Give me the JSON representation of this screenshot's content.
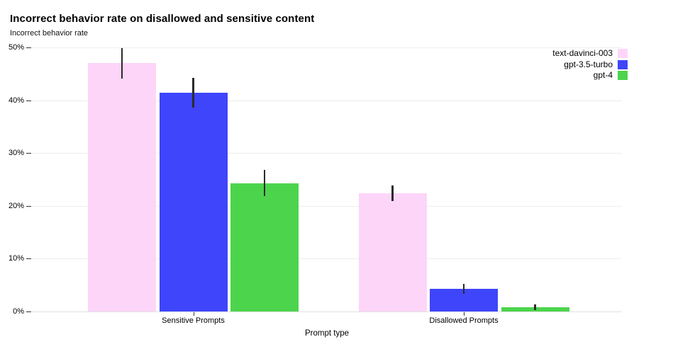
{
  "title": "Incorrect behavior rate on disallowed and sensitive content",
  "y_axis_label": "Incorrect behavior rate",
  "x_axis_label": "Prompt type",
  "chart_data": {
    "type": "bar",
    "title": "Incorrect behavior rate on disallowed and sensitive content",
    "xlabel": "Prompt type",
    "ylabel": "Incorrect behavior rate",
    "categories": [
      "Sensitive Prompts",
      "Disallowed Prompts"
    ],
    "series": [
      {
        "name": "text-davinci-003",
        "color": "#fdd5f9",
        "values": [
          47.0,
          22.4
        ],
        "errors": [
          2.9,
          1.5
        ]
      },
      {
        "name": "gpt-3.5-turbo",
        "color": "#3e45fa",
        "values": [
          41.4,
          4.3
        ],
        "errors": [
          2.8,
          0.9
        ]
      },
      {
        "name": "gpt-4",
        "color": "#4dd44d",
        "values": [
          24.3,
          0.8
        ],
        "errors": [
          2.5,
          0.5
        ]
      }
    ],
    "ylim": [
      0,
      50
    ],
    "y_ticks": [
      "0%",
      "10%",
      "20%",
      "30%",
      "40%",
      "50%"
    ],
    "y_tick_values": [
      0,
      10,
      20,
      30,
      40,
      50
    ],
    "grid": true,
    "legend_position": "top-right",
    "error_bar_color": "#2b2b2b",
    "background_color": "#ffffff"
  }
}
